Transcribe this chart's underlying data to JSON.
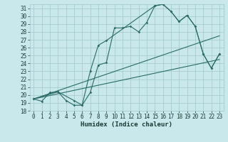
{
  "xlabel": "Humidex (Indice chaleur)",
  "bg_color": "#c8e8ec",
  "line_color": "#2a6b65",
  "grid_color": "#a0c8cc",
  "xlim_min": -0.5,
  "xlim_max": 23.5,
  "ylim_min": 18,
  "ylim_max": 31.5,
  "xticks": [
    0,
    1,
    2,
    3,
    4,
    5,
    6,
    7,
    8,
    9,
    10,
    11,
    12,
    13,
    14,
    15,
    16,
    17,
    18,
    19,
    20,
    21,
    22,
    23
  ],
  "yticks": [
    18,
    19,
    20,
    21,
    22,
    23,
    24,
    25,
    26,
    27,
    28,
    29,
    30,
    31
  ],
  "line1_x": [
    0,
    1,
    2,
    3,
    4,
    5,
    6,
    7,
    8,
    9,
    10,
    11,
    12,
    13,
    14,
    15,
    16,
    17,
    18,
    19,
    20,
    21,
    22,
    23
  ],
  "line1_y": [
    19.5,
    19.2,
    20.3,
    20.4,
    19.3,
    18.7,
    18.7,
    20.3,
    23.8,
    24.1,
    28.5,
    28.5,
    28.7,
    28.0,
    29.2,
    31.3,
    31.5,
    30.6,
    29.3,
    30.1,
    28.7,
    25.2,
    23.4,
    25.2
  ],
  "line2_x": [
    0,
    3,
    5,
    6,
    7,
    8,
    9,
    15,
    16,
    17,
    18,
    19,
    20,
    21,
    22,
    23
  ],
  "line2_y": [
    19.5,
    20.4,
    19.3,
    18.7,
    23.0,
    26.3,
    26.9,
    31.3,
    31.5,
    30.6,
    29.3,
    30.1,
    28.7,
    25.2,
    23.4,
    25.2
  ],
  "line3_x": [
    0,
    23
  ],
  "line3_y": [
    19.5,
    24.5
  ],
  "line4_x": [
    0,
    23
  ],
  "line4_y": [
    19.5,
    27.5
  ],
  "tick_fontsize": 5.5,
  "xlabel_fontsize": 6.5
}
